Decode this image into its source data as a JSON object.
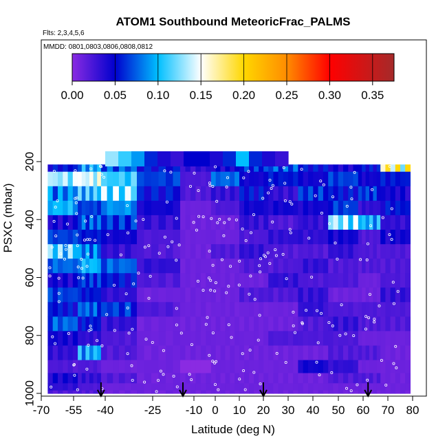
{
  "chart_data": {
    "type": "heatmap",
    "title": "ATOM1 Southbound MeteoricFrac_PALMS",
    "subtitle_flights": "Flts: 2,3,4,5,6",
    "subtitle_dates": "MMDD: 0801,0803,0806,0808,0812",
    "xlabel": "Latitude (deg N)",
    "ylabel": "PSXC (mbar)",
    "xlim": [
      -70,
      80
    ],
    "ylim": [
      1000,
      100
    ],
    "x_ticks": [
      -70,
      -55,
      -40,
      -25,
      -10,
      0,
      10,
      20,
      30,
      40,
      50,
      60,
      70,
      80
    ],
    "x_tick_labels": [
      "-70",
      "-55",
      "-40",
      "-25",
      "-10",
      "0",
      "10",
      "20",
      "30",
      "40",
      "50",
      "60",
      "70",
      "80"
    ],
    "y_ticks": [
      200,
      400,
      600,
      800,
      1000
    ],
    "y_tick_labels": [
      "200",
      "400",
      "600",
      "800",
      "1000"
    ],
    "colorbar": {
      "range": [
        0,
        0.375
      ],
      "ticks": [
        0.0,
        0.05,
        0.1,
        0.15,
        0.2,
        0.25,
        0.3,
        0.35
      ],
      "tick_labels": [
        "0.00",
        "0.05",
        "0.10",
        "0.15",
        "0.20",
        "0.25",
        "0.30",
        "0.35"
      ],
      "colors": [
        "#8a2be2",
        "#0000cd",
        "#00bfff",
        "#ffffff",
        "#ffd700",
        "#ff8c00",
        "#ff0000",
        "#a52a2a"
      ]
    },
    "lat_bands": [
      {
        "range": [
          -67,
          -53
        ],
        "values": [
          0.05,
          0.12,
          0.08,
          0.09,
          0.04,
          0.06,
          0.11,
          0.07,
          0.04,
          0.06,
          0.05,
          0.07,
          0.04,
          0.03,
          0.02,
          0.04,
          0.03,
          0.02
        ]
      },
      {
        "range": [
          -53,
          -42
        ],
        "values": [
          0.09,
          0.13,
          0.1,
          0.06,
          0.07,
          0.05,
          0.08,
          0.09,
          0.06,
          0.05,
          0.07,
          0.05,
          0.03,
          0.09,
          0.02,
          0.03,
          0.02,
          0.02
        ]
      },
      {
        "range": [
          -42,
          -30
        ],
        "values": [
          0.07,
          0.1,
          0.12,
          0.08,
          0.06,
          0.04,
          0.03,
          0.07,
          0.05,
          0.03,
          0.06,
          0.03,
          0.02,
          0.02,
          0.01,
          0.02,
          0.01,
          0.01
        ]
      },
      {
        "range": [
          -30,
          -15
        ],
        "values": [
          0.05,
          0.06,
          0.05,
          0.04,
          0.03,
          0.02,
          0.02,
          0.03,
          0.02,
          0.01,
          0.02,
          0.01,
          0.01,
          0.01,
          0.01,
          0.01,
          0.01,
          0.01
        ]
      },
      {
        "range": [
          -15,
          -2
        ],
        "values": [
          0.03,
          0.02,
          0.02,
          0.01,
          0.01,
          0.01,
          0.01,
          0.01,
          0.01,
          0.01,
          0.01,
          0.01,
          0.01,
          0.01,
          0.0,
          0.01,
          0.01,
          0.01
        ]
      },
      {
        "range": [
          -2,
          10
        ],
        "values": [
          0.04,
          0.07,
          0.03,
          0.02,
          0.01,
          0.01,
          0.02,
          0.01,
          0.01,
          0.01,
          0.01,
          0.01,
          0.01,
          0.01,
          0.01,
          0.01,
          0.01,
          0.01
        ]
      },
      {
        "range": [
          10,
          22
        ],
        "values": [
          0.06,
          0.04,
          0.05,
          0.04,
          0.03,
          0.02,
          0.03,
          0.02,
          0.01,
          0.02,
          0.01,
          0.01,
          0.01,
          0.01,
          0.01,
          0.01,
          0.01,
          0.01
        ]
      },
      {
        "range": [
          22,
          34
        ],
        "values": [
          0.07,
          0.05,
          0.03,
          0.04,
          0.02,
          0.03,
          0.02,
          0.02,
          0.03,
          0.02,
          0.01,
          0.01,
          0.02,
          0.01,
          0.01,
          0.01,
          0.01,
          0.01
        ]
      },
      {
        "range": [
          34,
          46
        ],
        "values": [
          0.05,
          0.04,
          0.06,
          0.04,
          0.03,
          0.03,
          0.02,
          0.03,
          0.02,
          0.03,
          0.03,
          0.02,
          0.02,
          0.01,
          0.04,
          0.01,
          0.01,
          0.01
        ]
      },
      {
        "range": [
          46,
          58
        ],
        "values": [
          0.04,
          0.06,
          0.05,
          0.06,
          0.12,
          0.04,
          0.03,
          0.02,
          0.02,
          0.01,
          0.02,
          0.03,
          0.02,
          0.02,
          0.03,
          0.02,
          0.01,
          0.01
        ]
      },
      {
        "range": [
          58,
          67
        ],
        "values": [
          0.05,
          0.04,
          0.06,
          0.03,
          0.09,
          0.02,
          0.02,
          0.02,
          0.01,
          0.01,
          0.02,
          0.02,
          0.01,
          0.02,
          0.01,
          0.02,
          0.01,
          0.01
        ]
      },
      {
        "range": [
          67,
          79
        ],
        "values": [
          0.16,
          0.05,
          0.04,
          0.05,
          0.03,
          0.04,
          0.02,
          0.02,
          0.02,
          0.03,
          0.02,
          0.02,
          0.01,
          0.01,
          0.01,
          0.01,
          0.01,
          0.01
        ]
      }
    ],
    "pressure_levels": [
      210,
      260,
      310,
      360,
      410,
      460,
      510,
      560,
      610,
      660,
      710,
      760,
      810,
      860,
      910,
      950,
      980,
      1000
    ],
    "top_strip": {
      "lat_range": [
        -40,
        30
      ],
      "values": [
        0.13,
        0.11,
        0.09,
        0.06,
        0.04,
        0.03,
        0.05,
        0.05,
        0.04,
        0.06,
        0.1,
        0.06,
        0.04,
        0.03
      ]
    },
    "flight_markers_lat": [
      -42,
      -14,
      20,
      62
    ]
  }
}
